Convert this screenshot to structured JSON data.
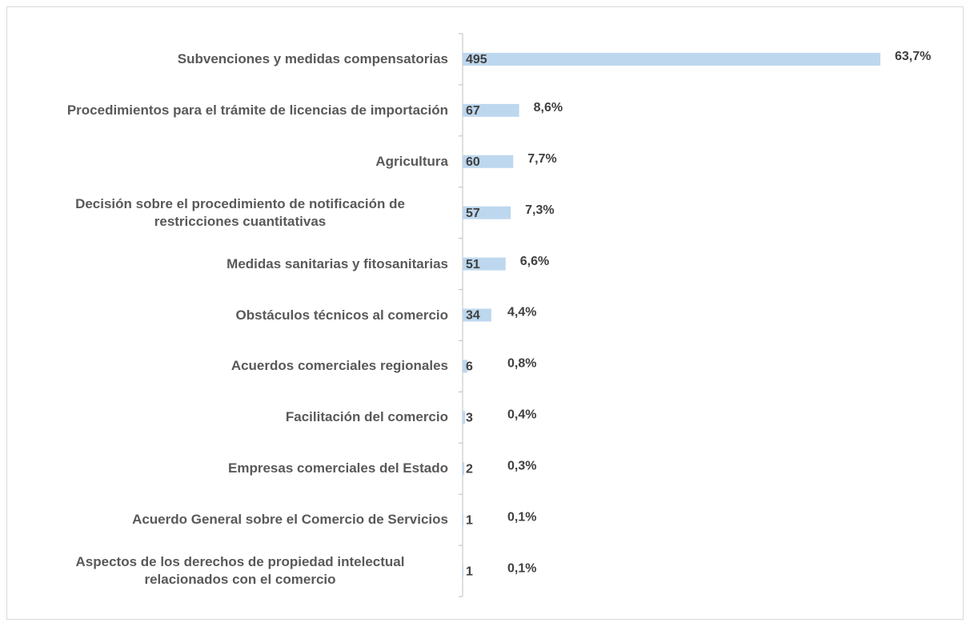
{
  "chart_data": {
    "type": "bar",
    "orientation": "horizontal",
    "categories": [
      "Subvenciones y medidas compensatorias",
      "Procedimientos para el trámite de licencias de importación",
      "Agricultura",
      "Decisión sobre el procedimiento de notificación de restricciones cuantitativas",
      "Medidas sanitarias y fitosanitarias",
      "Obstáculos técnicos al comercio",
      "Acuerdos comerciales regionales",
      "Facilitación del comercio",
      "Empresas comerciales del Estado",
      "Acuerdo General sobre el Comercio de Servicios",
      "Aspectos de los derechos de propiedad intelectual relacionados con el comercio"
    ],
    "values": [
      495,
      67,
      60,
      57,
      51,
      34,
      6,
      3,
      2,
      1,
      1
    ],
    "percent_labels": [
      "63,7%",
      "8,6%",
      "7,7%",
      "7,3%",
      "6,6%",
      "4,4%",
      "0,8%",
      "0,4%",
      "0,3%",
      "0,1%",
      "0,1%"
    ],
    "color": "#bdd7ee",
    "xlim": [
      0,
      495
    ]
  }
}
